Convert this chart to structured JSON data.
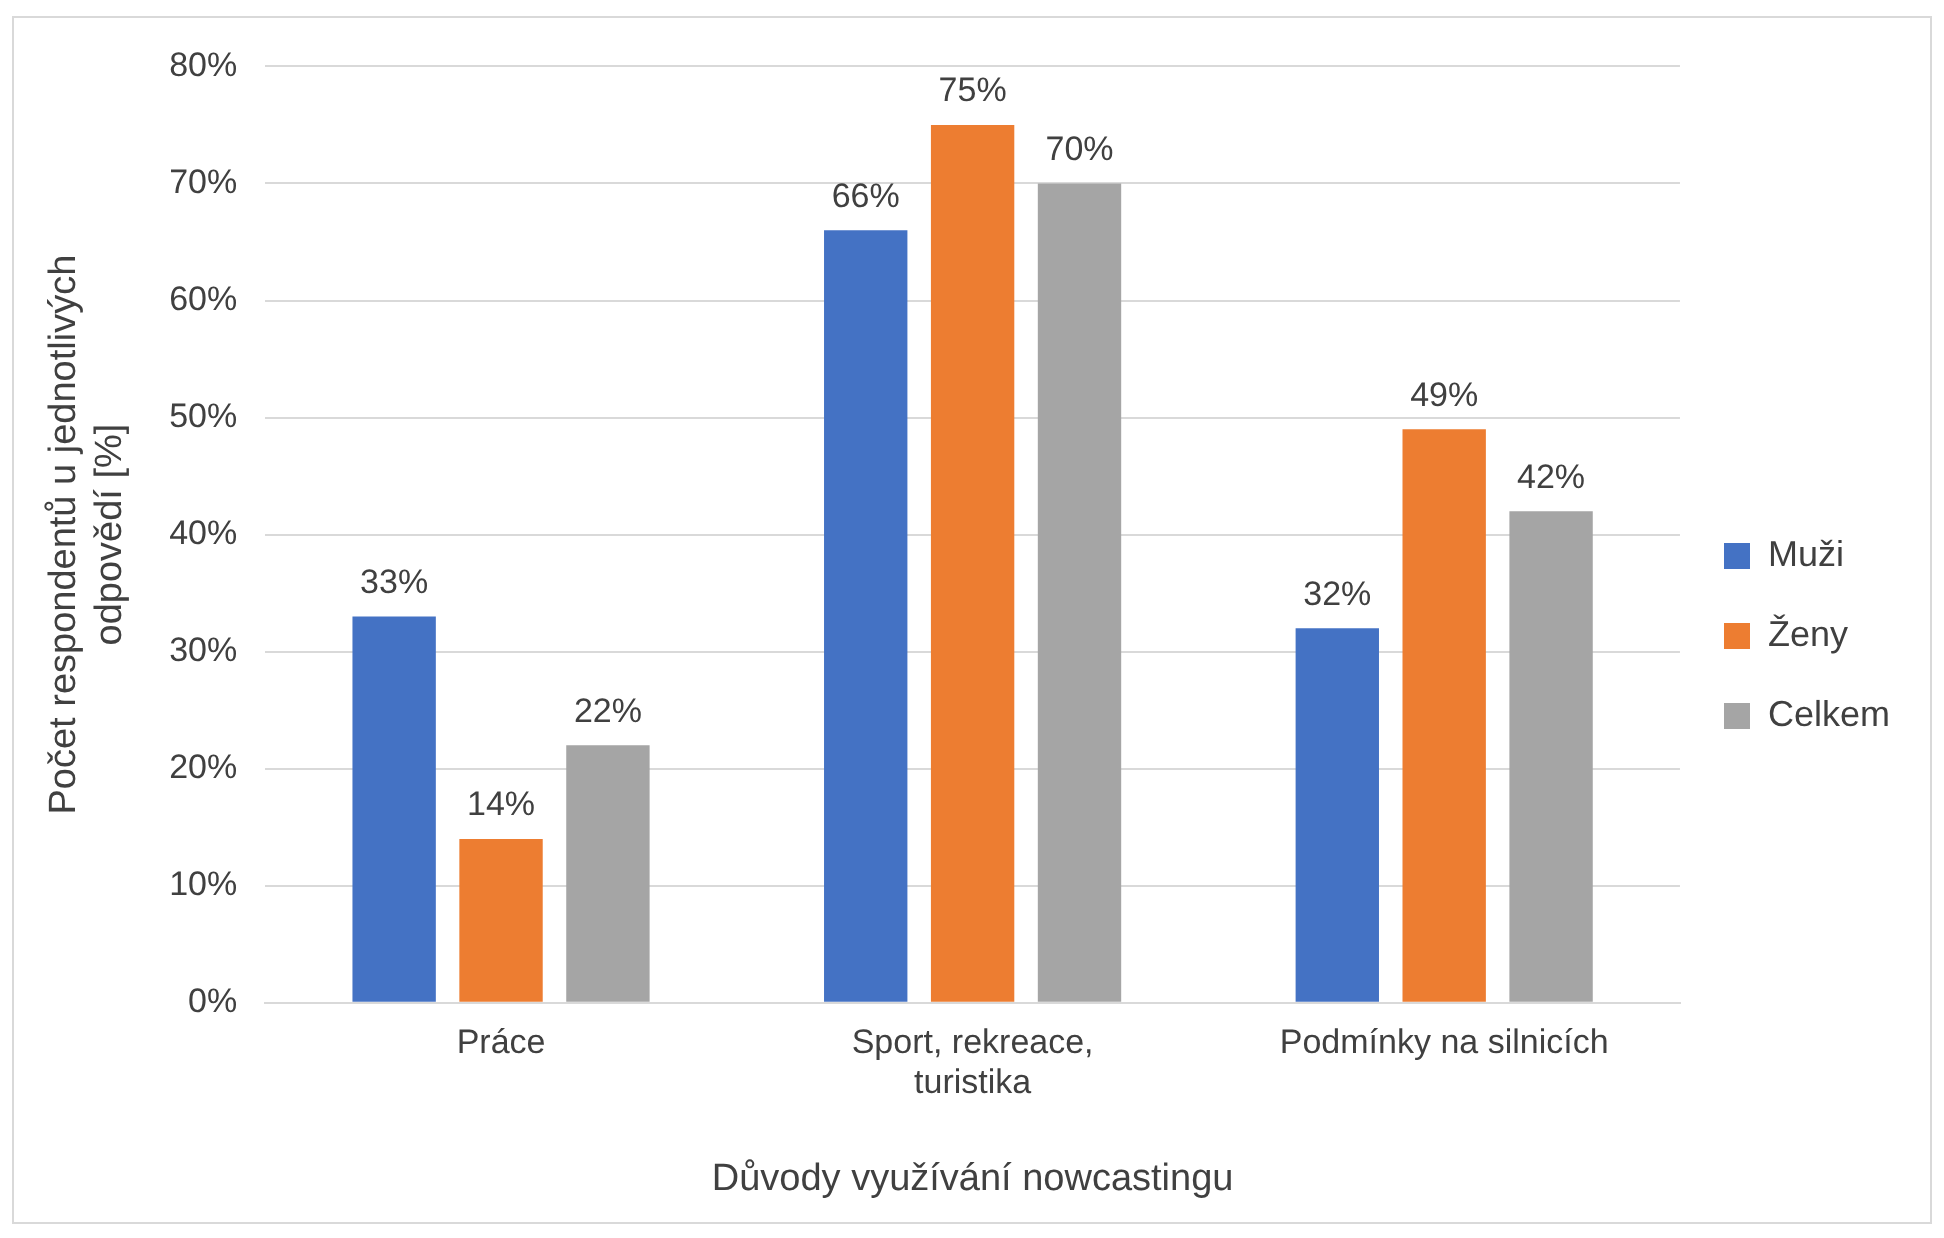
{
  "chart_data": {
    "type": "bar",
    "xlabel": "Důvody využívání nowcastingu",
    "ylabel": "Počet respondentů u jednotlivých odpovědí [%]",
    "categories": [
      "Práce",
      "Sport, rekreace, turistika",
      "Podmínky na silnicích"
    ],
    "series": [
      {
        "name": "Muži",
        "color": "#4472c4",
        "values": [
          33,
          66,
          32
        ],
        "value_labels": [
          "33%",
          "66%",
          "32%"
        ]
      },
      {
        "name": "Ženy",
        "color": "#ed7d31",
        "values": [
          14,
          75,
          49
        ],
        "value_labels": [
          "14%",
          "75%",
          "49%"
        ]
      },
      {
        "name": "Celkem",
        "color": "#a5a5a5",
        "values": [
          22,
          70,
          42
        ],
        "value_labels": [
          "22%",
          "70%",
          "42%"
        ]
      }
    ],
    "ylim": [
      0,
      80
    ],
    "yticks": [
      {
        "value": 0,
        "label": "0%"
      },
      {
        "value": 10,
        "label": "10%"
      },
      {
        "value": 20,
        "label": "20%"
      },
      {
        "value": 30,
        "label": "30%"
      },
      {
        "value": 40,
        "label": "40%"
      },
      {
        "value": 50,
        "label": "50%"
      },
      {
        "value": 60,
        "label": "60%"
      },
      {
        "value": 70,
        "label": "70%"
      },
      {
        "value": 80,
        "label": "80%"
      }
    ],
    "grid": "y",
    "legend": "right"
  }
}
